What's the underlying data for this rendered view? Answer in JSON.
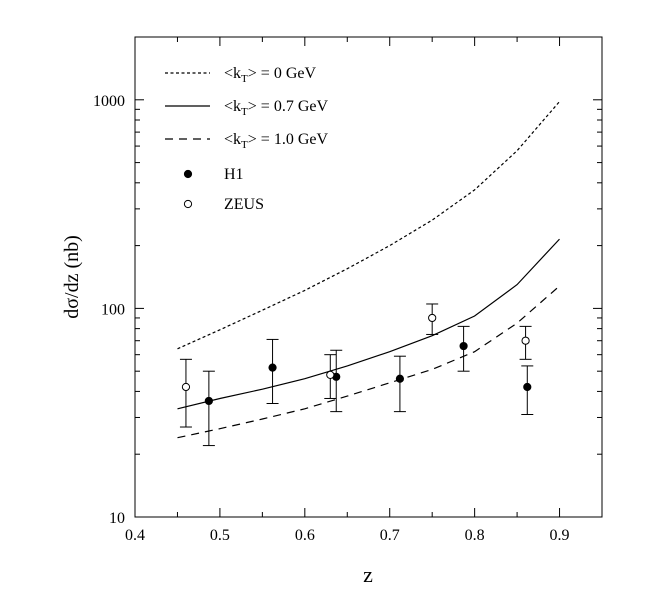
{
  "chart_data": {
    "type": "line",
    "title": "",
    "xlabel": "z",
    "ylabel": "dσ/dz   (nb)",
    "xlim": [
      0.4,
      0.95
    ],
    "ylim": [
      10,
      2000
    ],
    "yscale": "log",
    "grid": false,
    "legend_position": "top-left",
    "x_ticks": [
      0.4,
      0.5,
      0.6,
      0.7,
      0.8,
      0.9
    ],
    "x_tick_labels": [
      "0.4",
      "0.5",
      "0.6",
      "0.7",
      "0.8",
      "0.9"
    ],
    "y_ticks": [
      10,
      100,
      1000
    ],
    "y_tick_labels": [
      "10",
      "100",
      "1000"
    ],
    "series": [
      {
        "name": "<kT> = 0 GeV",
        "legend_base": "<k",
        "legend_sub": "T",
        "legend_rest": "> = 0 GeV",
        "style": "dotted",
        "x": [
          0.45,
          0.5,
          0.55,
          0.6,
          0.65,
          0.7,
          0.75,
          0.8,
          0.85,
          0.9
        ],
        "y": [
          64,
          79,
          98,
          122,
          155,
          200,
          265,
          370,
          570,
          980
        ]
      },
      {
        "name": "<kT> = 0.7 GeV",
        "legend_base": "<k",
        "legend_sub": "T",
        "legend_rest": "> = 0.7 GeV",
        "style": "solid",
        "x": [
          0.45,
          0.5,
          0.55,
          0.6,
          0.65,
          0.7,
          0.75,
          0.8,
          0.85,
          0.9
        ],
        "y": [
          33,
          37,
          41,
          46,
          53,
          62,
          74,
          92,
          130,
          215
        ]
      },
      {
        "name": "<kT> = 1.0 GeV",
        "legend_base": "<k",
        "legend_sub": "T",
        "legend_rest": "> = 1.0 GeV",
        "style": "dashed",
        "x": [
          0.45,
          0.5,
          0.55,
          0.6,
          0.65,
          0.7,
          0.75,
          0.8,
          0.85,
          0.9
        ],
        "y": [
          24,
          26.5,
          29.5,
          33,
          38,
          44,
          51,
          62,
          85,
          128
        ]
      }
    ],
    "points": [
      {
        "name": "H1",
        "marker": "filled-circle",
        "data": [
          {
            "x": 0.487,
            "y": 36,
            "ylo": 22,
            "yhi": 50
          },
          {
            "x": 0.562,
            "y": 52,
            "ylo": 35,
            "yhi": 71
          },
          {
            "x": 0.637,
            "y": 47,
            "ylo": 32,
            "yhi": 63
          },
          {
            "x": 0.712,
            "y": 46,
            "ylo": 32,
            "yhi": 59
          },
          {
            "x": 0.787,
            "y": 66,
            "ylo": 50,
            "yhi": 82
          },
          {
            "x": 0.862,
            "y": 42,
            "ylo": 31,
            "yhi": 53
          }
        ]
      },
      {
        "name": "ZEUS",
        "marker": "open-circle",
        "data": [
          {
            "x": 0.46,
            "y": 42,
            "ylo": 27,
            "yhi": 57
          },
          {
            "x": 0.63,
            "y": 48,
            "ylo": 37,
            "yhi": 60
          },
          {
            "x": 0.75,
            "y": 90,
            "ylo": 75,
            "yhi": 105
          },
          {
            "x": 0.86,
            "y": 70,
            "ylo": 57,
            "yhi": 82
          }
        ]
      }
    ]
  }
}
